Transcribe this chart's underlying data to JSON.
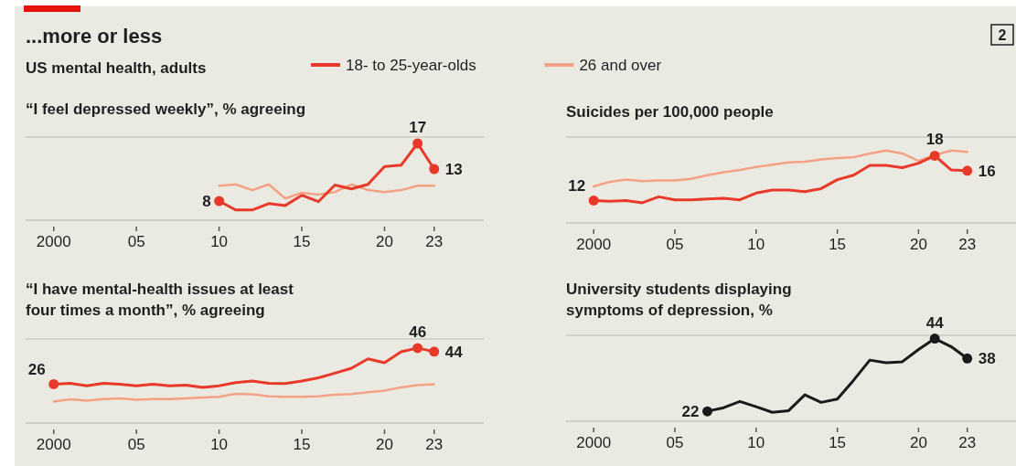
{
  "chart_data": [
    {
      "type": "line",
      "title": "...more or less",
      "subtitle": "US mental health, adults",
      "annotations": [
        "2"
      ],
      "ylabel": "“I feel depressed weekly”, % agreeing",
      "legend": "top",
      "tick_labels": "x",
      "xlim": [
        1998.3,
        2026
      ],
      "xticks": [
        {
          "value": 2000,
          "label": "2000"
        },
        {
          "value": 2005,
          "label": "05"
        },
        {
          "value": 2010,
          "label": "10"
        },
        {
          "value": 2015,
          "label": "15"
        },
        {
          "value": 2020,
          "label": "20"
        },
        {
          "value": 2023,
          "label": "23"
        }
      ],
      "ylim": [
        5,
        18
      ],
      "yticks": [
        {
          "value": 5,
          "label": null
        },
        {
          "value": 18,
          "label": null
        }
      ],
      "x": [
        2010,
        2011,
        2012,
        2013,
        2014,
        2015,
        2016,
        2017,
        2018,
        2019,
        2020,
        2021,
        2022,
        2023
      ],
      "series": [
        {
          "name": "26 and over",
          "color": "#f4a286",
          "values": [
            10.4,
            10.6,
            9.7,
            10.6,
            8.4,
            9.3,
            9.0,
            9.4,
            10.6,
            9.7,
            9.4,
            9.7,
            10.4,
            10.4
          ]
        },
        {
          "name": "18- to 25-year-olds",
          "color": "#e8392a",
          "values": [
            8,
            6.6,
            6.6,
            7.6,
            7.3,
            8.9,
            7.9,
            10.5,
            9.9,
            10.6,
            13.4,
            13.6,
            17,
            13
          ],
          "value_labels": [
            "8",
            null,
            null,
            null,
            null,
            null,
            null,
            null,
            null,
            null,
            null,
            null,
            "17",
            "13"
          ]
        }
      ]
    },
    {
      "type": "line",
      "ylabel": "Suicides per 100,000 people",
      "tick_labels": "x",
      "xlim": [
        1998.3,
        2026
      ],
      "xticks": [
        {
          "value": 2000,
          "label": "2000"
        },
        {
          "value": 2005,
          "label": "05"
        },
        {
          "value": 2010,
          "label": "10"
        },
        {
          "value": 2015,
          "label": "15"
        },
        {
          "value": 2020,
          "label": "20"
        },
        {
          "value": 2023,
          "label": "23"
        }
      ],
      "ylim": [
        9,
        20.5
      ],
      "yticks": [
        {
          "value": 9,
          "label": null
        },
        {
          "value": 20.5,
          "label": null
        }
      ],
      "x": [
        2000,
        2001,
        2002,
        2003,
        2004,
        2005,
        2006,
        2007,
        2008,
        2009,
        2010,
        2011,
        2012,
        2013,
        2014,
        2015,
        2016,
        2017,
        2018,
        2019,
        2020,
        2021,
        2022,
        2023
      ],
      "series": [
        {
          "color": "#f4a286",
          "values": [
            13.9,
            14.5,
            14.8,
            14.6,
            14.7,
            14.7,
            14.9,
            15.4,
            15.8,
            16.1,
            16.5,
            16.8,
            17.1,
            17.2,
            17.5,
            17.7,
            17.8,
            18.3,
            18.7,
            18.3,
            17.3,
            18.1,
            18.7,
            18.5
          ]
        },
        {
          "color": "#e8392a",
          "values": [
            12,
            11.9,
            12.0,
            11.7,
            12.5,
            12.1,
            12.1,
            12.2,
            12.3,
            12.1,
            13.0,
            13.4,
            13.4,
            13.2,
            13.6,
            14.8,
            15.4,
            16.7,
            16.7,
            16.4,
            17.0,
            18,
            16.1,
            16
          ],
          "value_labels": [
            "12",
            null,
            null,
            null,
            null,
            null,
            null,
            null,
            null,
            null,
            null,
            null,
            null,
            null,
            null,
            null,
            null,
            null,
            null,
            null,
            null,
            "18",
            null,
            "16"
          ]
        }
      ]
    },
    {
      "type": "line",
      "ylabel": "“I have mental-health issues at least four times a month”, % agreeing",
      "tick_labels": "x",
      "xlim": [
        1998.3,
        2026
      ],
      "xticks": [
        {
          "value": 2000,
          "label": "2000"
        },
        {
          "value": 2005,
          "label": "05"
        },
        {
          "value": 2010,
          "label": "10"
        },
        {
          "value": 2015,
          "label": "15"
        },
        {
          "value": 2020,
          "label": "20"
        },
        {
          "value": 2023,
          "label": "23"
        }
      ],
      "ylim": [
        4.5,
        51
      ],
      "yticks": [
        {
          "value": 4.5,
          "label": null
        },
        {
          "value": 51,
          "label": null
        }
      ],
      "x": [
        2000,
        2001,
        2002,
        2003,
        2004,
        2005,
        2006,
        2007,
        2008,
        2009,
        2010,
        2011,
        2012,
        2013,
        2014,
        2015,
        2016,
        2017,
        2018,
        2019,
        2020,
        2021,
        2022,
        2023
      ],
      "series": [
        {
          "color": "#f4a286",
          "values": [
            16.4,
            17.6,
            16.9,
            17.8,
            18.1,
            17.4,
            17.8,
            17.8,
            18.1,
            18.6,
            19.0,
            20.7,
            20.4,
            19.3,
            19.0,
            19.0,
            19.3,
            20.2,
            20.6,
            21.6,
            22.5,
            24.2,
            25.5,
            26
          ]
        },
        {
          "color": "#e8392a",
          "values": [
            26,
            26.5,
            25.1,
            26.5,
            26,
            25.1,
            26,
            25.1,
            25.5,
            24.2,
            25.1,
            26.9,
            27.8,
            26.5,
            26.4,
            27.8,
            29.5,
            32.1,
            34.8,
            40.0,
            37.9,
            43.9,
            46,
            44
          ],
          "value_labels": [
            "26",
            null,
            null,
            null,
            null,
            null,
            null,
            null,
            null,
            null,
            null,
            null,
            null,
            null,
            null,
            null,
            null,
            null,
            null,
            null,
            null,
            null,
            "46",
            "44"
          ]
        }
      ]
    },
    {
      "type": "line",
      "ylabel": "University students displaying symptoms of depression, %",
      "tick_labels": "x",
      "xlim": [
        1998.3,
        2026
      ],
      "xticks": [
        {
          "value": 2000,
          "label": "2000"
        },
        {
          "value": 2005,
          "label": "05"
        },
        {
          "value": 2010,
          "label": "10"
        },
        {
          "value": 2015,
          "label": "15"
        },
        {
          "value": 2020,
          "label": "20"
        },
        {
          "value": 2023,
          "label": "23"
        }
      ],
      "ylim": [
        19,
        45
      ],
      "yticks": [
        {
          "value": 19,
          "label": null
        },
        {
          "value": 45,
          "label": null
        }
      ],
      "x": [
        2007,
        2008,
        2009,
        2010,
        2011,
        2012,
        2013,
        2014,
        2015,
        2016,
        2017,
        2018,
        2019,
        2020,
        2021,
        2022,
        2023
      ],
      "series": [
        {
          "color": "#1a1a1a",
          "values": [
            22,
            23.1,
            25.0,
            23.4,
            21.7,
            22.2,
            27.0,
            24.7,
            25.7,
            31.4,
            37.5,
            36.7,
            37.0,
            40.7,
            44,
            41.6,
            38
          ],
          "value_labels": [
            "22",
            null,
            null,
            null,
            null,
            null,
            null,
            null,
            null,
            null,
            null,
            null,
            null,
            null,
            "44",
            null,
            "38"
          ]
        }
      ]
    }
  ]
}
